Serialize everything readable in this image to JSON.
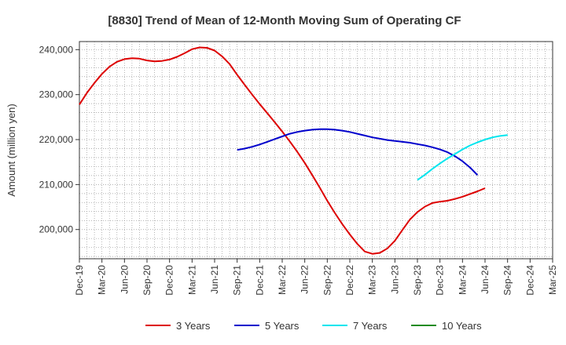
{
  "chart_data": {
    "type": "line",
    "title": "[8830]  Trend of Mean of 12-Month Moving Sum of Operating CF",
    "xlabel": "",
    "ylabel": "Amount (million yen)",
    "ylim": [
      193500,
      241800
    ],
    "y_ticks": [
      200000,
      210000,
      220000,
      230000,
      240000
    ],
    "y_tick_labels": [
      "200,000",
      "210,000",
      "220,000",
      "230,000",
      "240,000"
    ],
    "x_start": "Dec-19",
    "x_end": "Mar-25",
    "x_ticks": [
      "Dec-19",
      "Mar-20",
      "Jun-20",
      "Sep-20",
      "Dec-20",
      "Mar-21",
      "Jun-21",
      "Sep-21",
      "Dec-21",
      "Mar-22",
      "Jun-22",
      "Sep-22",
      "Dec-22",
      "Mar-23",
      "Jun-23",
      "Sep-23",
      "Dec-23",
      "Mar-24",
      "Jun-24",
      "Sep-24",
      "Dec-24",
      "Mar-25"
    ],
    "grid": true,
    "legend_position": "bottom",
    "series": [
      {
        "name": "3 Years",
        "color": "#dd0000",
        "start": "Dec-19",
        "values": [
          227800,
          230400,
          232600,
          234600,
          236200,
          237300,
          237900,
          238100,
          238000,
          237600,
          237400,
          237500,
          237800,
          238400,
          239200,
          240100,
          240500,
          240400,
          239800,
          238500,
          236800,
          234400,
          232200,
          230000,
          227900,
          225900,
          223900,
          221800,
          219600,
          217300,
          214800,
          212100,
          209300,
          206400,
          203700,
          201200,
          198900,
          196800,
          195100,
          194600,
          194800,
          195800,
          197500,
          199900,
          202200,
          203900,
          205100,
          205900,
          206200,
          206400,
          206800,
          207300,
          207900,
          208500,
          209200
        ]
      },
      {
        "name": "5 Years",
        "color": "#0000cc",
        "start": "Sep-21",
        "values": [
          217700,
          218000,
          218400,
          218900,
          219500,
          220100,
          220700,
          221300,
          221700,
          222000,
          222200,
          222300,
          222300,
          222200,
          222000,
          221700,
          221300,
          220900,
          220500,
          220200,
          219900,
          219700,
          219500,
          219300,
          219000,
          218700,
          218300,
          217800,
          217200,
          216300,
          215200,
          213800,
          212100
        ]
      },
      {
        "name": "7 Years",
        "color": "#00e5ee",
        "start": "Sep-23",
        "values": [
          211000,
          212200,
          213500,
          214700,
          215800,
          216800,
          217800,
          218700,
          219400,
          220000,
          220500,
          220800,
          221000
        ]
      },
      {
        "name": "10 Years",
        "color": "#228b22",
        "start": "Sep-24",
        "values": []
      }
    ]
  }
}
